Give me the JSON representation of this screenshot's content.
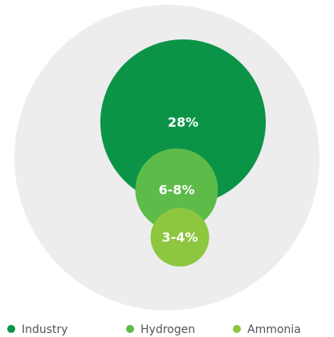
{
  "chart_data": {
    "type": "bubble",
    "series": [
      {
        "name": "Industry",
        "color": "#0b9447",
        "low": 28,
        "high": 28,
        "value_label": "28%"
      },
      {
        "name": "Hydrogen",
        "color": "#5dbb4a",
        "low": 6,
        "high": 8,
        "value_label": "6-8%"
      },
      {
        "name": "Ammonia",
        "color": "#8dc63f",
        "low": 3,
        "high": 4,
        "value_label": "3-4%"
      }
    ]
  }
}
